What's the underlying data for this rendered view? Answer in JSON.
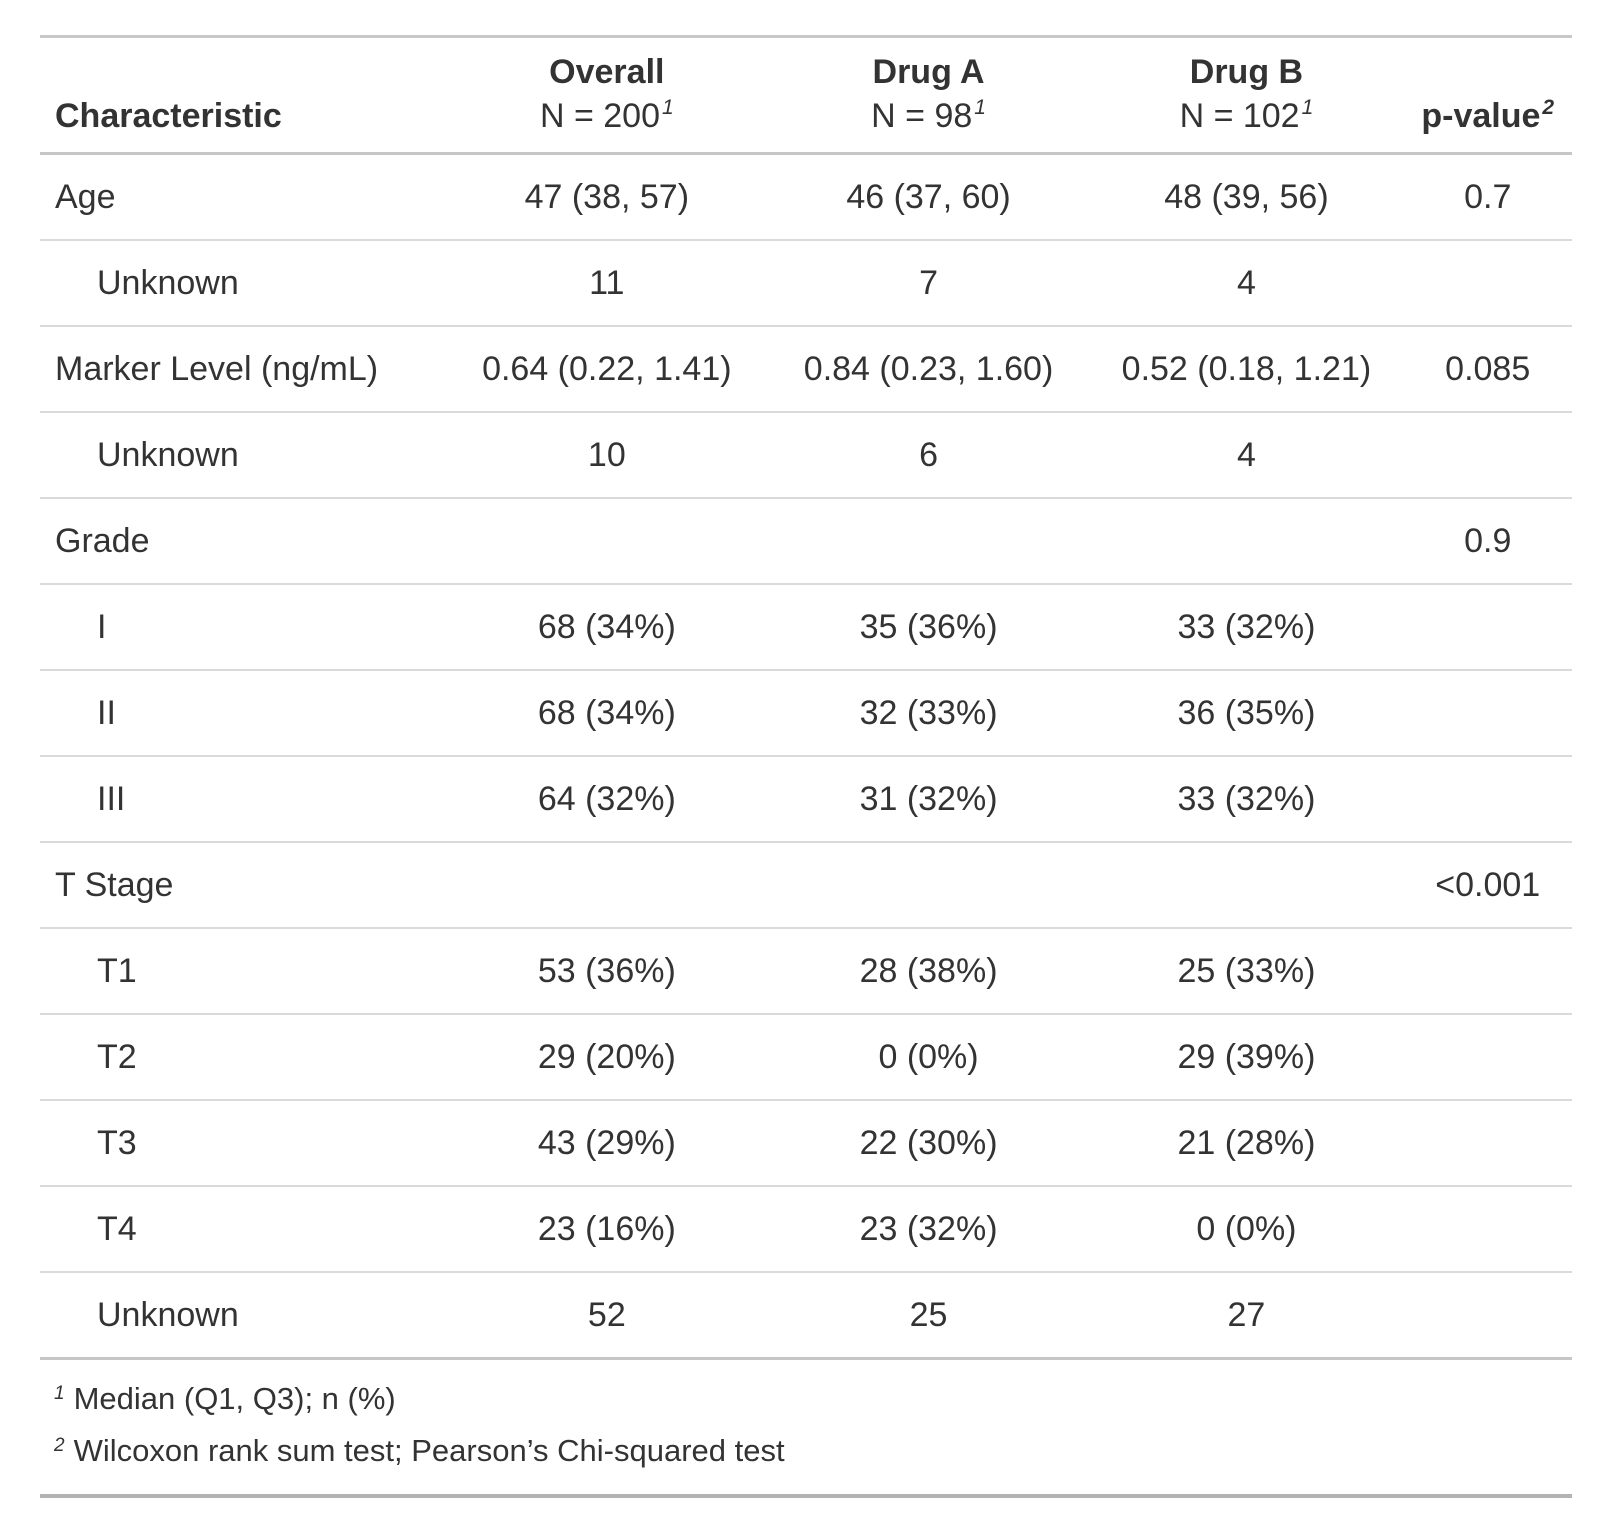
{
  "table": {
    "columns": [
      {
        "label": "Characteristic",
        "sublabel": "",
        "footnote_mark": ""
      },
      {
        "label": "Overall",
        "sublabel": "N = 200",
        "footnote_mark": "1"
      },
      {
        "label": "Drug A",
        "sublabel": "N = 98",
        "footnote_mark": "1"
      },
      {
        "label": "Drug B",
        "sublabel": "N = 102",
        "footnote_mark": "1"
      },
      {
        "label": "p-value",
        "sublabel": "",
        "footnote_mark": "2"
      }
    ],
    "rows": [
      {
        "label": "Age",
        "indent": false,
        "overall": "47 (38, 57)",
        "drug_a": "46 (37, 60)",
        "drug_b": "48 (39, 56)",
        "p_value": "0.7"
      },
      {
        "label": "Unknown",
        "indent": true,
        "overall": "11",
        "drug_a": "7",
        "drug_b": "4",
        "p_value": ""
      },
      {
        "label": "Marker Level (ng/mL)",
        "indent": false,
        "overall": "0.64 (0.22, 1.41)",
        "drug_a": "0.84 (0.23, 1.60)",
        "drug_b": "0.52 (0.18, 1.21)",
        "p_value": "0.085"
      },
      {
        "label": "Unknown",
        "indent": true,
        "overall": "10",
        "drug_a": "6",
        "drug_b": "4",
        "p_value": ""
      },
      {
        "label": "Grade",
        "indent": false,
        "overall": "",
        "drug_a": "",
        "drug_b": "",
        "p_value": "0.9"
      },
      {
        "label": "I",
        "indent": true,
        "overall": "68 (34%)",
        "drug_a": "35 (36%)",
        "drug_b": "33 (32%)",
        "p_value": ""
      },
      {
        "label": "II",
        "indent": true,
        "overall": "68 (34%)",
        "drug_a": "32 (33%)",
        "drug_b": "36 (35%)",
        "p_value": ""
      },
      {
        "label": "III",
        "indent": true,
        "overall": "64 (32%)",
        "drug_a": "31 (32%)",
        "drug_b": "33 (32%)",
        "p_value": ""
      },
      {
        "label": "T Stage",
        "indent": false,
        "overall": "",
        "drug_a": "",
        "drug_b": "",
        "p_value": "<0.001"
      },
      {
        "label": "T1",
        "indent": true,
        "overall": "53 (36%)",
        "drug_a": "28 (38%)",
        "drug_b": "25 (33%)",
        "p_value": ""
      },
      {
        "label": "T2",
        "indent": true,
        "overall": "29 (20%)",
        "drug_a": "0 (0%)",
        "drug_b": "29 (39%)",
        "p_value": ""
      },
      {
        "label": "T3",
        "indent": true,
        "overall": "43 (29%)",
        "drug_a": "22 (30%)",
        "drug_b": "21 (28%)",
        "p_value": ""
      },
      {
        "label": "T4",
        "indent": true,
        "overall": "23 (16%)",
        "drug_a": "23 (32%)",
        "drug_b": "0 (0%)",
        "p_value": ""
      },
      {
        "label": "Unknown",
        "indent": true,
        "overall": "52",
        "drug_a": "25",
        "drug_b": "27",
        "p_value": ""
      }
    ],
    "footnotes": [
      {
        "mark": "1",
        "text": "Median (Q1, Q3); n (%)"
      },
      {
        "mark": "2",
        "text": "Wilcoxon rank sum test; Pearson’s Chi-squared test"
      }
    ]
  }
}
